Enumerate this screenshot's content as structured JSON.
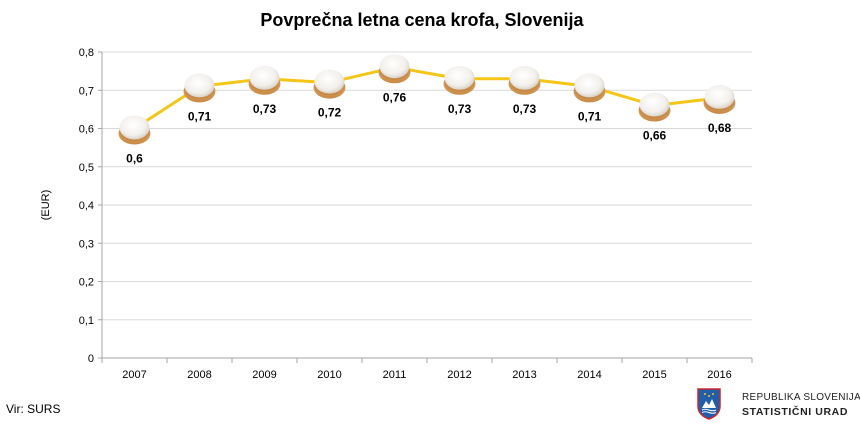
{
  "colors": {
    "line": "#F5C518",
    "axis": "#A6A6A6",
    "grid": "#D9D9D9",
    "donut_body": "#C98A45",
    "donut_sugar": "#F2F0EC",
    "crest_blue": "#1F5EA8",
    "crest_red": "#D2232A"
  },
  "source": "Vir: SURS",
  "logo": {
    "line1": "REPUBLIKA SLOVENIJA",
    "line2": "STATISTIČNI URAD",
    "icon": "slovenia-coat-of-arms-icon"
  },
  "chart_data": {
    "type": "line",
    "title": "Povprečna letna cena krofa, Slovenija",
    "ylabel": "(EUR)",
    "xlabel": "",
    "categories": [
      "2007",
      "2008",
      "2009",
      "2010",
      "2011",
      "2012",
      "2013",
      "2014",
      "2015",
      "2016"
    ],
    "values": [
      0.6,
      0.71,
      0.73,
      0.72,
      0.76,
      0.73,
      0.73,
      0.71,
      0.66,
      0.68
    ],
    "data_labels": [
      "0,6",
      "0,71",
      "0,73",
      "0,72",
      "0,76",
      "0,73",
      "0,73",
      "0,71",
      "0,66",
      "0,68"
    ],
    "label_position": [
      "below",
      "below",
      "below",
      "below",
      "below",
      "below",
      "below",
      "below",
      "below",
      "below"
    ],
    "yticks": [
      0,
      0.1,
      0.2,
      0.3,
      0.4,
      0.5,
      0.6,
      0.7,
      0.8
    ],
    "ytick_labels": [
      "0",
      "0,1",
      "0,2",
      "0,3",
      "0,4",
      "0,5",
      "0,6",
      "0,7",
      "0,8"
    ],
    "ylim": [
      0,
      0.8
    ],
    "grid": true,
    "legend": false,
    "marker": "donut-icon"
  }
}
